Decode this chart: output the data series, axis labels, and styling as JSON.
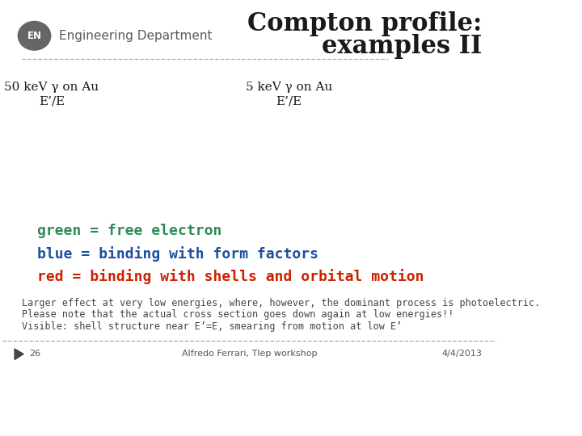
{
  "title_line1": "Compton profile:",
  "title_line2": "examples II",
  "title_color": "#1a1a1a",
  "title_fontsize": 22,
  "title_fontweight": "bold",
  "title_fontfamily": "serif",
  "header_logo_text": "EN",
  "header_dept_text": "Engineering Department",
  "header_color": "#5a5a5a",
  "label_left_line1": "50 keV γ on Au",
  "label_left_line2": "E’/E",
  "label_right_line1": "5 keV γ on Au",
  "label_right_line2": "E’/E",
  "label_color": "#1a1a1a",
  "label_fontsize": 11,
  "green_text": "green = free electron",
  "blue_text": "blue = binding with form factors",
  "red_text": "red = binding with shells and orbital motion",
  "green_color": "#2e8b57",
  "blue_color": "#1e4fa0",
  "red_color": "#cc2200",
  "legend_fontsize": 13,
  "note_line1": "Larger effect at very low energies, where, however, the dominant process is photoelectric.",
  "note_line2": "Please note that the actual cross section goes down again at low energies!!",
  "note_line3": "Visible: shell structure near E’=E, smearing from motion at low E’",
  "note_color": "#444444",
  "note_fontsize": 8.5,
  "footer_page": "26",
  "footer_center": "Alfredo Ferrari, Tlep workshop",
  "footer_right": "4/4/2013",
  "footer_color": "#555555",
  "footer_fontsize": 8,
  "bg_color": "#ffffff",
  "divider_color": "#aaaaaa",
  "divider_style": "--"
}
